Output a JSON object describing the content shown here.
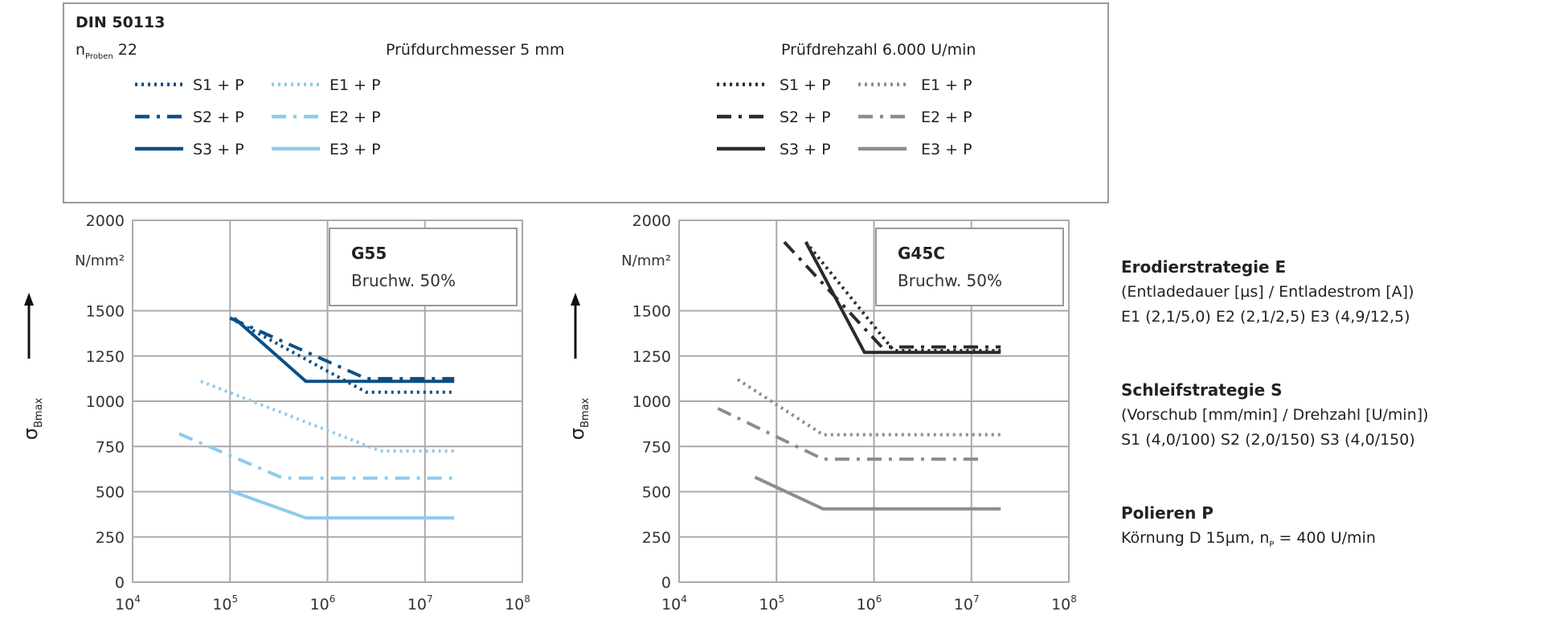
{
  "header": {
    "standard": "DIN 50113",
    "n_label": "n",
    "n_sub": "Proben",
    "n_value": "22",
    "diameter": "Prüfdurchmesser 5 mm",
    "speed": "Prüfdrehzahl 6.000 U/min"
  },
  "colors": {
    "dark_blue": "#0b4f86",
    "light_blue": "#8ccbee",
    "black": "#2b2b2b",
    "gray": "#8d8d8d",
    "grid": "#aaaaaa"
  },
  "legend": {
    "left": [
      {
        "label": "S1 + P",
        "style": "dotted",
        "color": "#0b4f86"
      },
      {
        "label": "S2 + P",
        "style": "dashdot",
        "color": "#0b4f86"
      },
      {
        "label": "S3 + P",
        "style": "solid",
        "color": "#0b4f86"
      },
      {
        "label": "E1 + P",
        "style": "dotted",
        "color": "#8ccbee"
      },
      {
        "label": "E2 + P",
        "style": "dashdot",
        "color": "#8ccbee"
      },
      {
        "label": "E3 + P",
        "style": "solid",
        "color": "#8ccbee"
      }
    ],
    "right": [
      {
        "label": "S1 + P",
        "style": "dotted",
        "color": "#2b2b2b"
      },
      {
        "label": "S2 + P",
        "style": "dashdot",
        "color": "#2b2b2b"
      },
      {
        "label": "S3 + P",
        "style": "solid",
        "color": "#2b2b2b"
      },
      {
        "label": "E1 + P",
        "style": "dotted",
        "color": "#8d8d8d"
      },
      {
        "label": "E2 + P",
        "style": "dashdot",
        "color": "#8d8d8d"
      },
      {
        "label": "E3 + P",
        "style": "solid",
        "color": "#8d8d8d"
      }
    ]
  },
  "chart_data": [
    {
      "type": "line",
      "title": "G55",
      "subtitle": "Bruchw. 50%",
      "ylabel": "σ",
      "ylabel_sub": "Bmax",
      "yunit": "N/mm²",
      "xscale": "log",
      "xlim": [
        10000,
        100000000
      ],
      "ylim": [
        0,
        2000
      ],
      "yticks": [
        0,
        250,
        500,
        750,
        1000,
        1250,
        1500,
        2000
      ],
      "ytick_labels": [
        "0",
        "250",
        "500",
        "750",
        "1000",
        "1250",
        "1500",
        "2000"
      ],
      "xticks": [
        10000,
        100000,
        1000000,
        10000000,
        100000000
      ],
      "xtick_labels": [
        {
          "base": "10",
          "exp": "4"
        },
        {
          "base": "10",
          "exp": "5"
        },
        {
          "base": "10",
          "exp": "6"
        },
        {
          "base": "10",
          "exp": "7"
        },
        {
          "base": "10",
          "exp": "8"
        }
      ],
      "grid": true,
      "series": [
        {
          "name": "S1 + P",
          "style": "dotted",
          "color": "#0b4f86",
          "x": [
            100000,
            2500000,
            20000000
          ],
          "y": [
            1460,
            1050,
            1050
          ]
        },
        {
          "name": "S2 + P",
          "style": "dashdot",
          "color": "#0b4f86",
          "x": [
            100000,
            2500000,
            20000000
          ],
          "y": [
            1460,
            1125,
            1125
          ]
        },
        {
          "name": "S3 + P",
          "style": "solid",
          "color": "#0b4f86",
          "x": [
            110000,
            600000,
            20000000
          ],
          "y": [
            1460,
            1110,
            1110
          ]
        },
        {
          "name": "E1 + P",
          "style": "dotted",
          "color": "#8ccbee",
          "x": [
            50000,
            3500000,
            20000000
          ],
          "y": [
            1110,
            725,
            725
          ]
        },
        {
          "name": "E2 + P",
          "style": "dashdot",
          "color": "#8ccbee",
          "x": [
            30000,
            350000,
            20000000
          ],
          "y": [
            820,
            575,
            575
          ]
        },
        {
          "name": "E3 + P",
          "style": "solid",
          "color": "#8ccbee",
          "x": [
            100000,
            600000,
            20000000
          ],
          "y": [
            505,
            355,
            355
          ]
        }
      ]
    },
    {
      "type": "line",
      "title": "G45C",
      "subtitle": "Bruchw. 50%",
      "ylabel": "σ",
      "ylabel_sub": "Bmax",
      "yunit": "N/mm²",
      "xscale": "log",
      "xlim": [
        10000,
        100000000
      ],
      "ylim": [
        0,
        2000
      ],
      "yticks": [
        0,
        250,
        500,
        750,
        1000,
        1250,
        1500,
        2000
      ],
      "ytick_labels": [
        "0",
        "250",
        "500",
        "750",
        "1000",
        "1250",
        "1500",
        "2000"
      ],
      "xticks": [
        10000,
        100000,
        1000000,
        10000000,
        100000000
      ],
      "xtick_labels": [
        {
          "base": "10",
          "exp": "4"
        },
        {
          "base": "10",
          "exp": "5"
        },
        {
          "base": "10",
          "exp": "6"
        },
        {
          "base": "10",
          "exp": "7"
        },
        {
          "base": "10",
          "exp": "8"
        }
      ],
      "grid": true,
      "series": [
        {
          "name": "S1 + P",
          "style": "dotted",
          "color": "#2b2b2b",
          "x": [
            200000,
            1600000,
            20000000
          ],
          "y": [
            1880,
            1280,
            1280
          ]
        },
        {
          "name": "S2 + P",
          "style": "dashdot",
          "color": "#2b2b2b",
          "x": [
            120000,
            1200000,
            20000000
          ],
          "y": [
            1880,
            1300,
            1300
          ]
        },
        {
          "name": "S3 + P",
          "style": "solid",
          "color": "#2b2b2b",
          "x": [
            200000,
            800000,
            20000000
          ],
          "y": [
            1880,
            1270,
            1270
          ]
        },
        {
          "name": "E1 + P",
          "style": "dotted",
          "color": "#8d8d8d",
          "x": [
            40000,
            300000,
            20000000
          ],
          "y": [
            1120,
            815,
            815
          ]
        },
        {
          "name": "E2 + P",
          "style": "dashdot",
          "color": "#8d8d8d",
          "x": [
            25000,
            300000,
            12000000
          ],
          "y": [
            960,
            680,
            680
          ]
        },
        {
          "name": "E3 + P",
          "style": "solid",
          "color": "#8d8d8d",
          "x": [
            60000,
            300000,
            20000000
          ],
          "y": [
            580,
            405,
            405
          ]
        }
      ]
    }
  ],
  "side_notes": {
    "e_title": "Erodierstrategie E",
    "e_params": "(Entladedauer [µs] / Entladestrom [A])",
    "e_values": "E1 (2,1/5,0)    E2 (2,1/2,5)    E3 (4,9/12,5)",
    "s_title": "Schleifstrategie S",
    "s_params": "(Vorschub [mm/min] / Drehzahl [U/min])",
    "s_values": "S1 (4,0/100)    S2 (2,0/150)    S3 (4,0/150)",
    "p_title": "Polieren P",
    "p_params_prefix": "Körnung D 15µm, n",
    "p_params_sub": "P",
    "p_params_suffix": " = 400 U/min"
  }
}
